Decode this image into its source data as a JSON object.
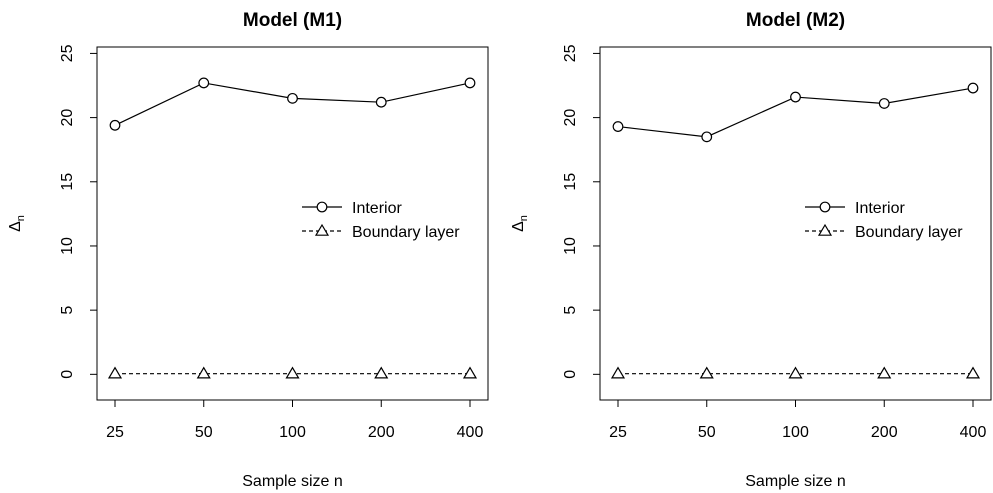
{
  "chart_data": [
    {
      "type": "line",
      "title": "Model (M1)",
      "xlabel": "Sample size n",
      "ylabel": "Δ",
      "ylabel_sub": "n",
      "categories": [
        "25",
        "50",
        "100",
        "200",
        "400"
      ],
      "yticks": [
        "0",
        "5",
        "10",
        "15",
        "20",
        "25"
      ],
      "ylim": [
        -2,
        25.5
      ],
      "grid": false,
      "legend_position": "right",
      "series": [
        {
          "name": "Interior",
          "marker": "circle",
          "linestyle": "solid",
          "values": [
            19.4,
            22.7,
            21.5,
            21.2,
            22.7
          ]
        },
        {
          "name": "Boundary layer",
          "marker": "triangle",
          "linestyle": "dashed",
          "values": [
            0.05,
            0.05,
            0.05,
            0.05,
            0.05
          ]
        }
      ]
    },
    {
      "type": "line",
      "title": "Model (M2)",
      "xlabel": "Sample size n",
      "ylabel": "Δ",
      "ylabel_sub": "n",
      "categories": [
        "25",
        "50",
        "100",
        "200",
        "400"
      ],
      "yticks": [
        "0",
        "5",
        "10",
        "15",
        "20",
        "25"
      ],
      "ylim": [
        -2,
        25.5
      ],
      "grid": false,
      "legend_position": "right",
      "series": [
        {
          "name": "Interior",
          "marker": "circle",
          "linestyle": "solid",
          "values": [
            19.3,
            18.5,
            21.6,
            21.1,
            22.3
          ]
        },
        {
          "name": "Boundary layer",
          "marker": "triangle",
          "linestyle": "dashed",
          "values": [
            0.05,
            0.05,
            0.05,
            0.05,
            0.05
          ]
        }
      ]
    }
  ]
}
